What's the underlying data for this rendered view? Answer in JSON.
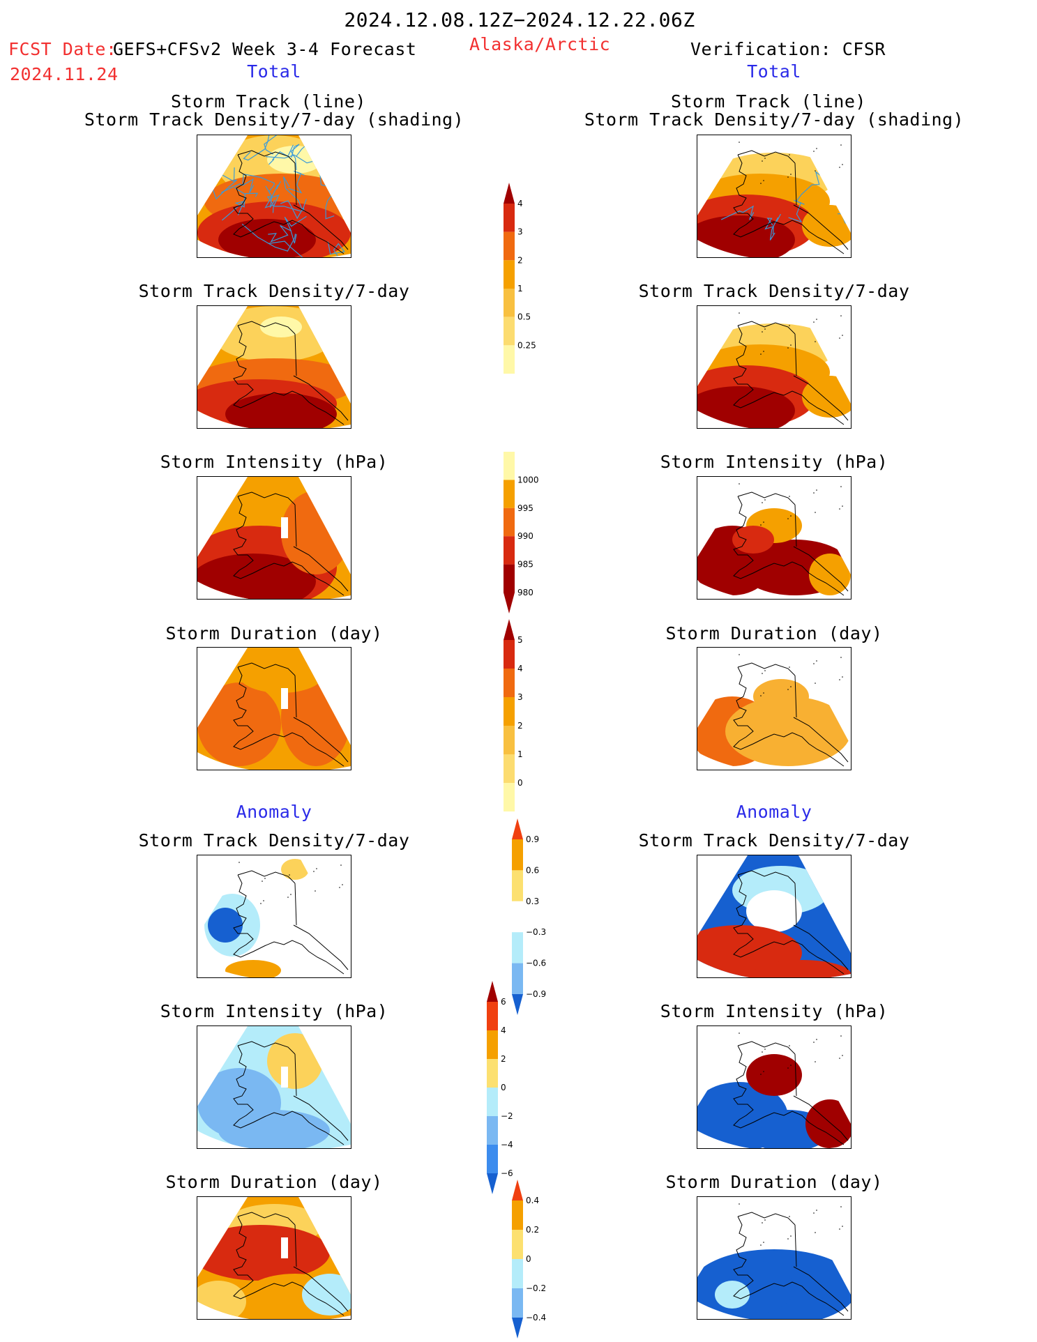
{
  "header": {
    "date_range": "2024.12.08.12Z−2024.12.22.06Z",
    "fcst_label": "FCST Date:",
    "fcst_product": "GEFS+CFSv2 Week 3-4 Forecast",
    "region": "Alaska/Arctic",
    "verification": "Verification: CFSR",
    "fcst_date": "2024.11.24",
    "left_section": "Total",
    "right_section": "Total",
    "left_anomaly": "Anomaly",
    "right_anomaly": "Anomaly"
  },
  "panel_titles": {
    "track_line": "Storm Track (line)",
    "track_density_shading": "Storm Track Density/7-day (shading)",
    "track_density": "Storm Track Density/7-day",
    "intensity": "Storm Intensity (hPa)",
    "duration": "Storm Duration (day)"
  },
  "colors": {
    "yellow_light": "#fff8a8",
    "yellow": "#fcd25a",
    "orange_light": "#f8b032",
    "orange": "#f5a000",
    "orange_dark": "#f06a10",
    "red": "#d82a10",
    "dark_red": "#a00000",
    "blue_light": "#b4ecfa",
    "blue_mid": "#7ab8f2",
    "blue": "#3c8cee",
    "blue_dark": "#1660d0",
    "track_line": "#3a9ad8"
  },
  "chart_data": [
    {
      "type": "heatmap",
      "title": "Storm Track (line) / Storm Track Density/7-day (shading)",
      "panel": "forecast total"
    },
    {
      "type": "heatmap",
      "title": "Storm Track (line) / Storm Track Density/7-day (shading)",
      "panel": "verification total"
    },
    {
      "type": "heatmap",
      "title": "Storm Track Density/7-day",
      "panel": "forecast total"
    },
    {
      "type": "heatmap",
      "title": "Storm Track Density/7-day",
      "panel": "verification total"
    },
    {
      "type": "heatmap",
      "title": "Storm Intensity (hPa)",
      "panel": "forecast total"
    },
    {
      "type": "heatmap",
      "title": "Storm Intensity (hPa)",
      "panel": "verification total"
    },
    {
      "type": "heatmap",
      "title": "Storm Duration (day)",
      "panel": "forecast total"
    },
    {
      "type": "heatmap",
      "title": "Storm Duration (day)",
      "panel": "verification total"
    },
    {
      "type": "heatmap",
      "title": "Storm Track Density/7-day",
      "panel": "forecast anomaly"
    },
    {
      "type": "heatmap",
      "title": "Storm Track Density/7-day",
      "panel": "verification anomaly"
    },
    {
      "type": "heatmap",
      "title": "Storm Intensity (hPa)",
      "panel": "forecast anomaly"
    },
    {
      "type": "heatmap",
      "title": "Storm Intensity (hPa)",
      "panel": "verification anomaly"
    },
    {
      "type": "heatmap",
      "title": "Storm Duration (day)",
      "panel": "forecast anomaly"
    },
    {
      "type": "heatmap",
      "title": "Storm Duration (day)",
      "panel": "verification anomaly"
    }
  ],
  "colorbars": {
    "density": {
      "labels": [
        "4",
        "3",
        "2",
        "1",
        "0.5",
        "0.25"
      ],
      "colors": [
        "#a00000",
        "#d82a10",
        "#f06a10",
        "#f5a000",
        "#f8c040",
        "#fcdc70",
        "#fff8a8"
      ]
    },
    "intensity": {
      "labels": [
        "1000",
        "995",
        "990",
        "985",
        "980"
      ],
      "colors": [
        "#fff8a8",
        "#f5a000",
        "#f06a10",
        "#d82a10",
        "#a00000",
        "#a00000"
      ]
    },
    "duration": {
      "labels": [
        "5",
        "4",
        "3",
        "2",
        "1",
        "0"
      ],
      "colors": [
        "#a00000",
        "#d82a10",
        "#f06a10",
        "#f5a000",
        "#f8c040",
        "#fcdc70",
        "#fff8a8"
      ]
    },
    "density_anom": {
      "labels": [
        "0.9",
        "0.6",
        "0.3",
        "−0.3",
        "−0.6",
        "−0.9"
      ],
      "colors": [
        "#f04010",
        "#f5a000",
        "#fce070",
        "#ffffff",
        "#b4ecfa",
        "#7ab8f2",
        "#1660d0"
      ]
    },
    "intensity_anom": {
      "labels": [
        "6",
        "4",
        "2",
        "0",
        "−2",
        "−4",
        "−6"
      ],
      "colors": [
        "#a00000",
        "#f04010",
        "#f5a000",
        "#fce070",
        "#b4ecfa",
        "#7ab8f2",
        "#3c8cee",
        "#1660d0"
      ]
    },
    "duration_anom": {
      "labels": [
        "0.4",
        "0.2",
        "0",
        "−0.2",
        "−0.4"
      ],
      "colors": [
        "#f04010",
        "#f5a000",
        "#fce070",
        "#b4ecfa",
        "#7ab8f2",
        "#1660d0"
      ]
    }
  }
}
